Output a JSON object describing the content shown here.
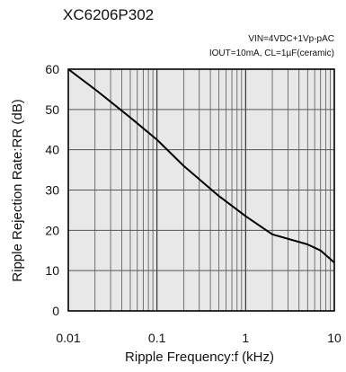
{
  "chart_data": {
    "type": "line",
    "title": "XC6206P302",
    "conditions": [
      "VIN=4VDC+1Vp-pAC",
      "IOUT=10mA, CL=1µF(ceramic)"
    ],
    "xlabel": "Ripple Frequency:f (kHz)",
    "ylabel": "Ripple Rejection Rate:RR (dB)",
    "xscale": "log",
    "xlim": [
      0.01,
      10
    ],
    "ylim": [
      0,
      60
    ],
    "x_ticks": [
      "0.01",
      "0.1",
      "1",
      "10"
    ],
    "y_ticks": [
      "0",
      "10",
      "20",
      "30",
      "40",
      "50",
      "60"
    ],
    "grid": true,
    "series": [
      {
        "x": [
          0.01,
          0.02,
          0.05,
          0.1,
          0.2,
          0.5,
          1,
          2,
          5,
          7,
          10
        ],
        "y": [
          60,
          55,
          48,
          42.5,
          36,
          28.5,
          23.5,
          19,
          16.5,
          15,
          12
        ],
        "color": "#000000"
      }
    ],
    "colors": {
      "plot_background": "#e8e8e8",
      "grid": "#555555",
      "line": "#000000"
    }
  }
}
